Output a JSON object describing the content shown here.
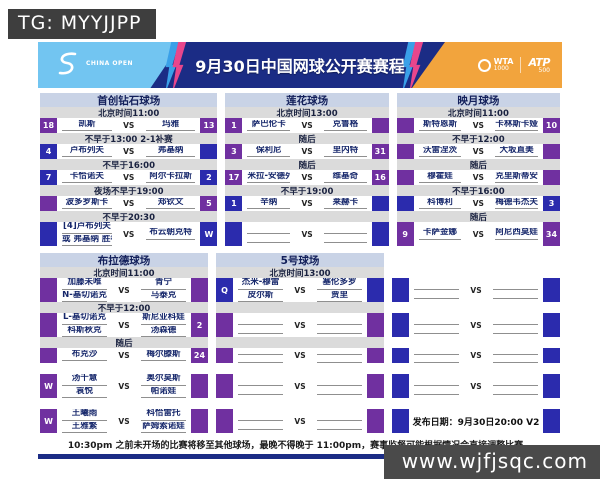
{
  "page": {
    "tg_label": "TG: MYYJJPP",
    "watermark": "www.wjfjsqc.com"
  },
  "banner": {
    "title": "9月30日中国网球公开赛赛程",
    "china_open": "CHINA OPEN",
    "wta": "WTA",
    "wta_tier": "1000",
    "atp": "ATP",
    "atp_tier": "500"
  },
  "vs_label": "VS",
  "colors": {
    "wta_box": "#7030A0",
    "atp_box": "#2B2BAD",
    "header_bg": "#C9D3E6",
    "label_bg": "#DBDBDB",
    "banner_navy": "#1B2C85",
    "banner_blue": "#72C5F1",
    "banner_orange": "#F2A43D",
    "bolt_pink": "#E8468C",
    "name_text": "#16276B"
  },
  "footer": {
    "note": "10:30pm 之前未开场的比赛将移至其他球场，最晚不得晚于 11:00pm，赛事监督可能根据情况会直接调整比赛。",
    "release": "发布日期：9月30日20:00 V2"
  },
  "sections": [
    {
      "courts": [
        {
          "name": "首创钻石球场",
          "rows": [
            {
              "t": "header"
            },
            {
              "t": "label",
              "text": "北京时间11:00"
            },
            {
              "t": "match",
              "ls": "18",
              "lc": "w",
              "p1": [
                "凯斯"
              ],
              "p2": [
                "玛雅"
              ],
              "rs": "13",
              "rc": "w"
            },
            {
              "t": "label",
              "text": "不早于13:00 2-1补赛"
            },
            {
              "t": "match",
              "ls": "4",
              "lc": "a",
              "p1": [
                "卢布列夫"
              ],
              "p2": [
                "弗基纳"
              ],
              "rs": "",
              "rc": "a"
            },
            {
              "t": "label",
              "text": "不早于16:00"
            },
            {
              "t": "match",
              "ls": "7",
              "lc": "a",
              "p1": [
                "卡恰诺夫"
              ],
              "p2": [
                "阿尔卡拉斯"
              ],
              "rs": "2",
              "rc": "a"
            },
            {
              "t": "label",
              "text": "夜场不早于19:00"
            },
            {
              "t": "match",
              "ls": "",
              "lc": "w",
              "p1": [
                "波多罗斯卡"
              ],
              "p2": [
                "郑钦文"
              ],
              "rs": "5",
              "rc": "w"
            },
            {
              "t": "label",
              "text": "不早于20:30"
            },
            {
              "t": "match",
              "tall": true,
              "ls": "",
              "lc": "a",
              "p1": [
                "[4]卢布列夫",
                "或 弗基纳 胜者"
              ],
              "p2": [
                "布云朝克特"
              ],
              "rs": "W",
              "rc": "a"
            }
          ]
        },
        {
          "name": "莲花球场",
          "rows": [
            {
              "t": "header"
            },
            {
              "t": "label",
              "text": "北京时间13:00"
            },
            {
              "t": "match",
              "ls": "1",
              "lc": "w",
              "p1": [
                "萨巴伦卡"
              ],
              "p2": [
                "克鲁格"
              ],
              "rs": "",
              "rc": "w"
            },
            {
              "t": "label",
              "text": "随后"
            },
            {
              "t": "match",
              "ls": "3",
              "lc": "w",
              "p1": [
                "保利尼"
              ],
              "p2": [
                "里内特"
              ],
              "rs": "31",
              "rc": "w"
            },
            {
              "t": "label",
              "text": "随后"
            },
            {
              "t": "match",
              "ls": "17",
              "lc": "w",
              "p1": [
                "米拉-安德列娃"
              ],
              "p2": [
                "维基奇"
              ],
              "rs": "16",
              "rc": "w"
            },
            {
              "t": "label",
              "text": "不早于19:00"
            },
            {
              "t": "match",
              "ls": "1",
              "lc": "a",
              "p1": [
                "辛纳"
              ],
              "p2": [
                "莱赫卡"
              ],
              "rs": "",
              "rc": "a"
            },
            {
              "t": "label",
              "text": ""
            },
            {
              "t": "match",
              "tall": true,
              "ls": "",
              "lc": "a",
              "p1": [
                "",
                ""
              ],
              "p2": [
                "",
                ""
              ],
              "rs": "",
              "rc": "a"
            }
          ]
        },
        {
          "name": "映月球场",
          "rows": [
            {
              "t": "header"
            },
            {
              "t": "label",
              "text": "北京时间11:00"
            },
            {
              "t": "match",
              "ls": "",
              "lc": "w",
              "p1": [
                "斯特恩斯"
              ],
              "p2": [
                "卡林斯卡娅"
              ],
              "rs": "10",
              "rc": "w"
            },
            {
              "t": "label",
              "text": "不早于12:00"
            },
            {
              "t": "match",
              "ls": "",
              "lc": "w",
              "p1": [
                "沃雷涅茨"
              ],
              "p2": [
                "大坂直美"
              ],
              "rs": "",
              "rc": "w"
            },
            {
              "t": "label",
              "text": "随后"
            },
            {
              "t": "match",
              "ls": "",
              "lc": "w",
              "p1": [
                "穆霍娃"
              ],
              "p2": [
                "克里斯蒂安"
              ],
              "rs": "",
              "rc": "w"
            },
            {
              "t": "label",
              "text": "不早于16:00"
            },
            {
              "t": "match",
              "ls": "",
              "lc": "a",
              "p1": [
                "科博利"
              ],
              "p2": [
                "梅德韦杰夫"
              ],
              "rs": "3",
              "rc": "a"
            },
            {
              "t": "label",
              "text": "随后"
            },
            {
              "t": "match",
              "tall": true,
              "ls": "9",
              "lc": "w",
              "p1": [
                "卡萨金娜"
              ],
              "p2": [
                "阿尼西莫娃"
              ],
              "rs": "34",
              "rc": "w"
            }
          ]
        }
      ]
    },
    {
      "courts": [
        {
          "name": "布拉德球场",
          "rows": [
            {
              "t": "header"
            },
            {
              "t": "label",
              "text": "北京时间11:00"
            },
            {
              "t": "match",
              "tall": true,
              "ls": "",
              "lc": "w",
              "p1": [
                "加藤未唯",
                "N-基切诺克"
              ],
              "p2": [
                "青宁",
                "马泰克"
              ],
              "rs": "",
              "rc": "w"
            },
            {
              "t": "label",
              "text": "不早于12:00"
            },
            {
              "t": "match",
              "tall": true,
              "ls": "",
              "lc": "w",
              "p1": [
                "L-基切诺克",
                "科斯秋克"
              ],
              "p2": [
                "斯尼亚科娃",
                "汤森德"
              ],
              "rs": "2",
              "rc": "w"
            },
            {
              "t": "label",
              "text": "随后"
            },
            {
              "t": "match",
              "ls": "",
              "lc": "w",
              "p1": [
                "布克沙"
              ],
              "p2": [
                "梅尔滕斯"
              ],
              "rs": "24",
              "rc": "w"
            },
            {
              "t": "gap"
            },
            {
              "t": "match",
              "tall": true,
              "ls": "W",
              "lc": "w",
              "p1": [
                "汤千慧",
                "袁悦"
              ],
              "p2": [
                "奥尔莫斯",
                "帕诺娃"
              ],
              "rs": "",
              "rc": "w"
            },
            {
              "t": "gap"
            },
            {
              "t": "match",
              "tall": true,
              "ls": "W",
              "lc": "w",
              "p1": [
                "王曦雨",
                "王雅繁"
              ],
              "p2": [
                "科恰雷托",
                "萨姆索诺娃"
              ],
              "rs": "",
              "rc": "w"
            }
          ]
        },
        {
          "name": "5号球场",
          "rows": [
            {
              "t": "header"
            },
            {
              "t": "label",
              "text": "北京时间13:00"
            },
            {
              "t": "match",
              "tall": true,
              "ls": "Q",
              "lc": "a",
              "p1": [
                "杰米-穆雷",
                "皮尔斯"
              ],
              "p2": [
                "塞伦多罗",
                "贾里"
              ],
              "rs": "",
              "rc": "a"
            },
            {
              "t": "label",
              "text": ""
            },
            {
              "t": "match",
              "tall": true,
              "ls": "",
              "lc": "w",
              "p1": [
                "",
                ""
              ],
              "p2": [
                "",
                ""
              ],
              "rs": "",
              "rc": "w"
            },
            {
              "t": "label",
              "text": ""
            },
            {
              "t": "match",
              "ls": "",
              "lc": "w",
              "p1": [
                "",
                ""
              ],
              "p2": [
                "",
                ""
              ],
              "rs": "",
              "rc": "w"
            },
            {
              "t": "gap"
            },
            {
              "t": "match",
              "tall": true,
              "ls": "",
              "lc": "w",
              "p1": [
                "",
                ""
              ],
              "p2": [
                "",
                ""
              ],
              "rs": "",
              "rc": "w"
            },
            {
              "t": "gap"
            },
            {
              "t": "match",
              "tall": true,
              "ls": "",
              "lc": "w",
              "p1": [
                "",
                ""
              ],
              "p2": [
                "",
                ""
              ],
              "rs": "",
              "rc": "w"
            }
          ]
        },
        {
          "name": "",
          "rows": [
            {
              "t": "gap",
              "h": "header"
            },
            {
              "t": "gap",
              "h": "label"
            },
            {
              "t": "match",
              "tall": true,
              "ls": "",
              "lc": "a",
              "p1": [
                "",
                ""
              ],
              "p2": [
                "",
                ""
              ],
              "rs": "",
              "rc": "a"
            },
            {
              "t": "gap",
              "h": "label"
            },
            {
              "t": "match",
              "tall": true,
              "ls": "",
              "lc": "a",
              "p1": [
                "",
                ""
              ],
              "p2": [
                "",
                ""
              ],
              "rs": "",
              "rc": "a"
            },
            {
              "t": "gap",
              "h": "label"
            },
            {
              "t": "match",
              "ls": "",
              "lc": "a",
              "p1": [
                "",
                ""
              ],
              "p2": [
                "",
                ""
              ],
              "rs": "",
              "rc": "a"
            },
            {
              "t": "gap"
            },
            {
              "t": "match",
              "tall": true,
              "ls": "",
              "lc": "a",
              "p1": [
                "",
                ""
              ],
              "p2": [
                "",
                ""
              ],
              "rs": "",
              "rc": "a"
            },
            {
              "t": "gap"
            },
            {
              "t": "match",
              "tall": true,
              "ls": "",
              "lc": "a",
              "center": "发布日期：9月30日20:00 V2",
              "rs": "",
              "rc": "a"
            }
          ]
        }
      ]
    }
  ]
}
